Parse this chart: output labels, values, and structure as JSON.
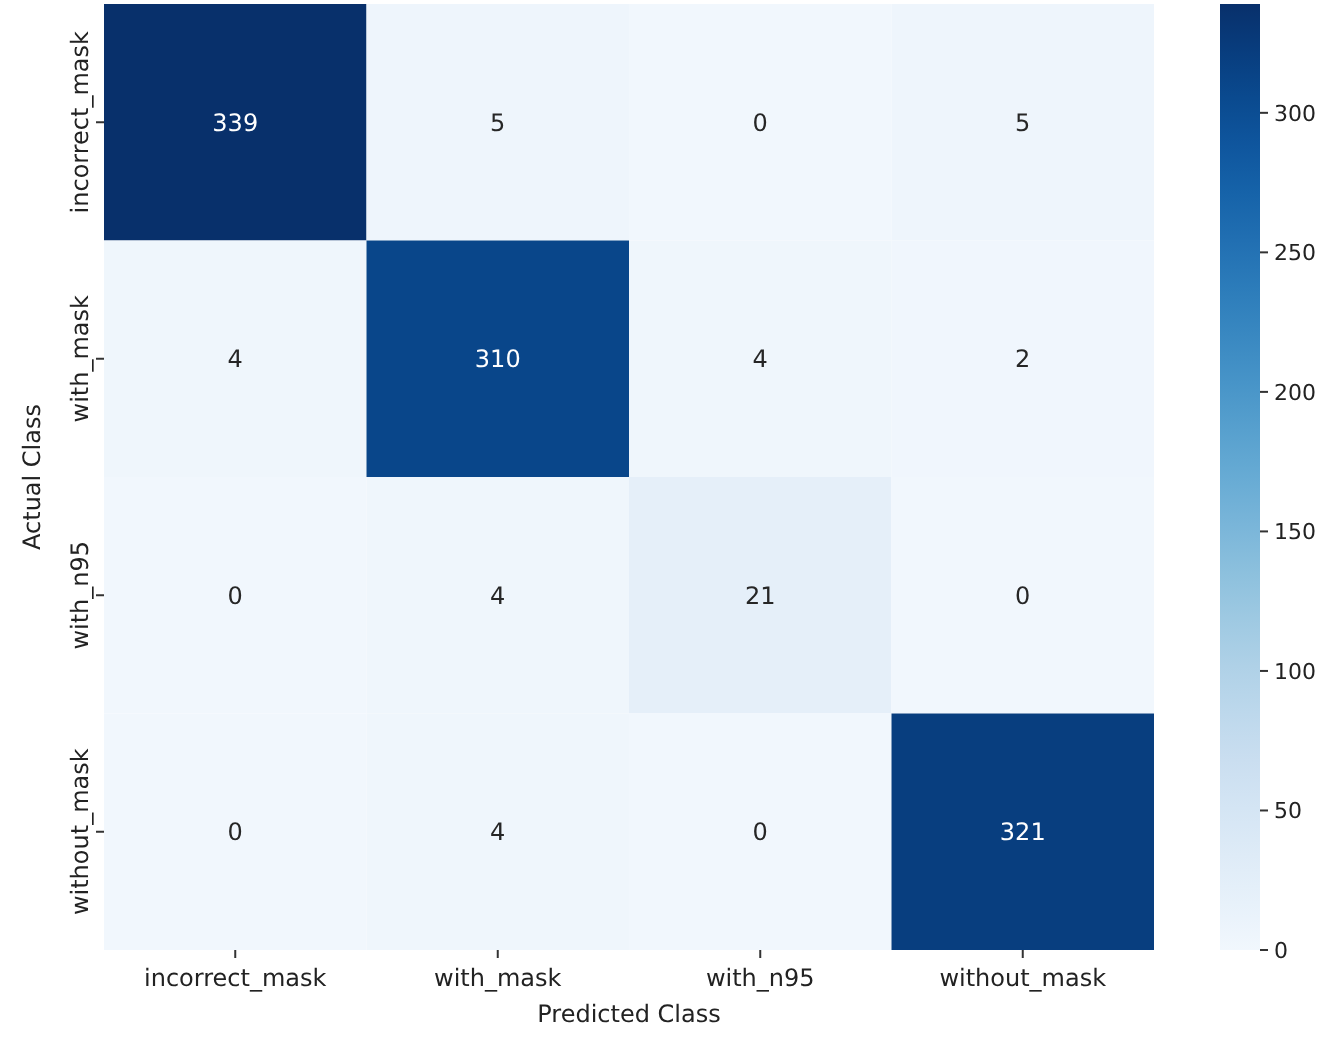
{
  "chart_data": {
    "type": "heatmap",
    "xlabel": "Predicted Class",
    "ylabel": "Actual Class",
    "categories": [
      "incorrect_mask",
      "with_mask",
      "with_n95",
      "without_mask"
    ],
    "y_categories": [
      "incorrect_mask",
      "with_mask",
      "with_n95",
      "without_mask"
    ],
    "cells": [
      [
        339,
        5,
        0,
        5
      ],
      [
        4,
        310,
        4,
        2
      ],
      [
        0,
        4,
        21,
        0
      ],
      [
        0,
        4,
        0,
        321
      ]
    ],
    "data_labels": true,
    "clim": [
      0,
      339
    ],
    "cticks": [
      0,
      50,
      100,
      150,
      200,
      250,
      300
    ]
  }
}
